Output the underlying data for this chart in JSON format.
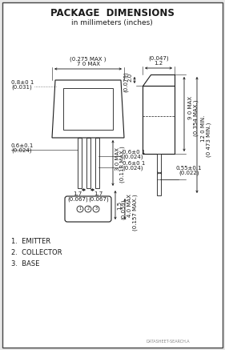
{
  "title": "PACKAGE  DIMENSIONS",
  "subtitle": "in millimeters (inches)",
  "bg_color": "#e8e8e8",
  "line_color": "#1a1a1a",
  "footer_text": "DATASHEET-SEARCH.A"
}
